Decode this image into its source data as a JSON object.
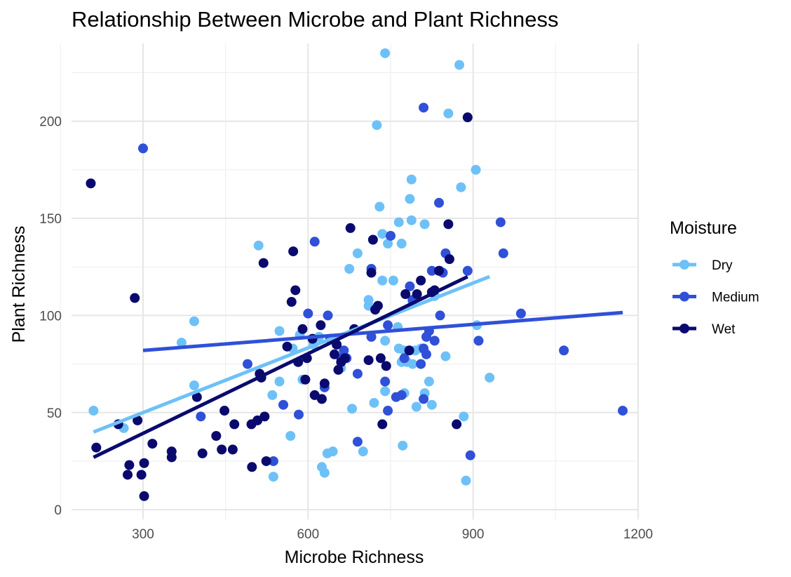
{
  "chart_data": {
    "type": "scatter",
    "title": "Relationship Between Microbe and Plant Richness",
    "xlabel": "Microbe Richness",
    "ylabel": "Plant Richness",
    "xlim": [
      170,
      1200
    ],
    "ylim": [
      -5,
      240
    ],
    "x_ticks": [
      300,
      600,
      900,
      1200
    ],
    "y_ticks": [
      0,
      50,
      100,
      150,
      200
    ],
    "x_tick_labels": [
      "300",
      "600",
      "900",
      "1200"
    ],
    "y_tick_labels": [
      "0",
      "50",
      "100",
      "150",
      "200"
    ],
    "grid": true,
    "legend": {
      "title": "Moisture",
      "position": "right"
    },
    "series": [
      {
        "name": "Dry",
        "color": "#6EC1F7",
        "points": [
          [
            210,
            51
          ],
          [
            265,
            42
          ],
          [
            370,
            86
          ],
          [
            393,
            64
          ],
          [
            393,
            97
          ],
          [
            510,
            136
          ],
          [
            535,
            59
          ],
          [
            537,
            17
          ],
          [
            548,
            66
          ],
          [
            548,
            92
          ],
          [
            568,
            38
          ],
          [
            572,
            83
          ],
          [
            585,
            90
          ],
          [
            590,
            67
          ],
          [
            610,
            85
          ],
          [
            620,
            89
          ],
          [
            625,
            22
          ],
          [
            630,
            19
          ],
          [
            635,
            29
          ],
          [
            645,
            30
          ],
          [
            660,
            73
          ],
          [
            675,
            124
          ],
          [
            680,
            52
          ],
          [
            690,
            132
          ],
          [
            700,
            30
          ],
          [
            710,
            108
          ],
          [
            710,
            105
          ],
          [
            720,
            55
          ],
          [
            725,
            198
          ],
          [
            730,
            156
          ],
          [
            735,
            142
          ],
          [
            735,
            118
          ],
          [
            740,
            87
          ],
          [
            740,
            61
          ],
          [
            740,
            235
          ],
          [
            745,
            137
          ],
          [
            750,
            141
          ],
          [
            755,
            118
          ],
          [
            763,
            94
          ],
          [
            765,
            148
          ],
          [
            765,
            83
          ],
          [
            770,
            137
          ],
          [
            770,
            76
          ],
          [
            772,
            33
          ],
          [
            775,
            82
          ],
          [
            775,
            60
          ],
          [
            780,
            76
          ],
          [
            785,
            160
          ],
          [
            788,
            170
          ],
          [
            788,
            149
          ],
          [
            790,
            107
          ],
          [
            790,
            75
          ],
          [
            795,
            82
          ],
          [
            797,
            53
          ],
          [
            805,
            83
          ],
          [
            812,
            147
          ],
          [
            812,
            60
          ],
          [
            820,
            66
          ],
          [
            825,
            54
          ],
          [
            830,
            110
          ],
          [
            840,
            123
          ],
          [
            850,
            79
          ],
          [
            855,
            204
          ],
          [
            875,
            229
          ],
          [
            878,
            166
          ],
          [
            883,
            48
          ],
          [
            887,
            15
          ],
          [
            905,
            175
          ],
          [
            907,
            95
          ],
          [
            930,
            68
          ]
        ],
        "trend": [
          [
            210,
            40
          ],
          [
            930,
            120
          ]
        ]
      },
      {
        "name": "Medium",
        "color": "#3050D8",
        "points": [
          [
            300,
            186
          ],
          [
            405,
            48
          ],
          [
            490,
            75
          ],
          [
            537,
            25
          ],
          [
            555,
            54
          ],
          [
            583,
            49
          ],
          [
            600,
            101
          ],
          [
            612,
            138
          ],
          [
            630,
            63
          ],
          [
            636,
            100
          ],
          [
            640,
            88
          ],
          [
            660,
            78
          ],
          [
            665,
            82
          ],
          [
            670,
            78
          ],
          [
            690,
            35
          ],
          [
            690,
            70
          ],
          [
            715,
            89
          ],
          [
            715,
            124
          ],
          [
            740,
            66
          ],
          [
            745,
            95
          ],
          [
            745,
            51
          ],
          [
            750,
            141
          ],
          [
            760,
            58
          ],
          [
            770,
            59
          ],
          [
            775,
            78
          ],
          [
            785,
            115
          ],
          [
            790,
            108
          ],
          [
            805,
            75
          ],
          [
            810,
            207
          ],
          [
            810,
            83
          ],
          [
            810,
            57
          ],
          [
            815,
            89
          ],
          [
            815,
            80
          ],
          [
            820,
            92
          ],
          [
            825,
            123
          ],
          [
            830,
            87
          ],
          [
            838,
            158
          ],
          [
            840,
            100
          ],
          [
            845,
            122
          ],
          [
            850,
            132
          ],
          [
            890,
            123
          ],
          [
            895,
            28
          ],
          [
            910,
            87
          ],
          [
            950,
            148
          ],
          [
            955,
            132
          ],
          [
            987,
            101
          ],
          [
            1065,
            82
          ],
          [
            1172,
            51
          ]
        ],
        "trend": [
          [
            300,
            82
          ],
          [
            1172,
            101.5
          ]
        ]
      },
      {
        "name": "Wet",
        "color": "#0A0A6E",
        "points": [
          [
            205,
            168
          ],
          [
            215,
            32
          ],
          [
            255,
            44
          ],
          [
            272,
            18
          ],
          [
            275,
            23
          ],
          [
            285,
            109
          ],
          [
            290,
            46
          ],
          [
            297,
            18
          ],
          [
            302,
            7
          ],
          [
            302,
            24
          ],
          [
            317,
            34
          ],
          [
            352,
            30
          ],
          [
            352,
            27
          ],
          [
            398,
            58
          ],
          [
            408,
            29
          ],
          [
            433,
            38
          ],
          [
            443,
            31
          ],
          [
            448,
            51
          ],
          [
            463,
            31
          ],
          [
            466,
            44
          ],
          [
            497,
            44
          ],
          [
            498,
            22
          ],
          [
            508,
            46
          ],
          [
            512,
            70
          ],
          [
            515,
            68
          ],
          [
            519,
            127
          ],
          [
            521,
            48
          ],
          [
            524,
            25
          ],
          [
            562,
            84
          ],
          [
            570,
            107
          ],
          [
            573,
            133
          ],
          [
            577,
            113
          ],
          [
            582,
            76
          ],
          [
            590,
            93
          ],
          [
            595,
            67
          ],
          [
            598,
            78
          ],
          [
            608,
            88
          ],
          [
            612,
            59
          ],
          [
            623,
            95
          ],
          [
            625,
            57
          ],
          [
            630,
            65
          ],
          [
            648,
            80
          ],
          [
            652,
            85
          ],
          [
            655,
            72
          ],
          [
            660,
            76
          ],
          [
            667,
            78
          ],
          [
            677,
            145
          ],
          [
            684,
            93
          ],
          [
            710,
            77
          ],
          [
            715,
            122
          ],
          [
            718,
            139
          ],
          [
            722,
            103
          ],
          [
            727,
            105
          ],
          [
            732,
            78
          ],
          [
            735,
            44
          ],
          [
            742,
            74
          ],
          [
            777,
            111
          ],
          [
            784,
            82
          ],
          [
            798,
            111
          ],
          [
            805,
            118
          ],
          [
            825,
            112
          ],
          [
            830,
            113
          ],
          [
            838,
            123
          ],
          [
            855,
            147
          ],
          [
            857,
            129
          ],
          [
            870,
            44
          ],
          [
            890,
            202
          ]
        ],
        "trend": [
          [
            210,
            27
          ],
          [
            890,
            120
          ]
        ]
      }
    ]
  }
}
